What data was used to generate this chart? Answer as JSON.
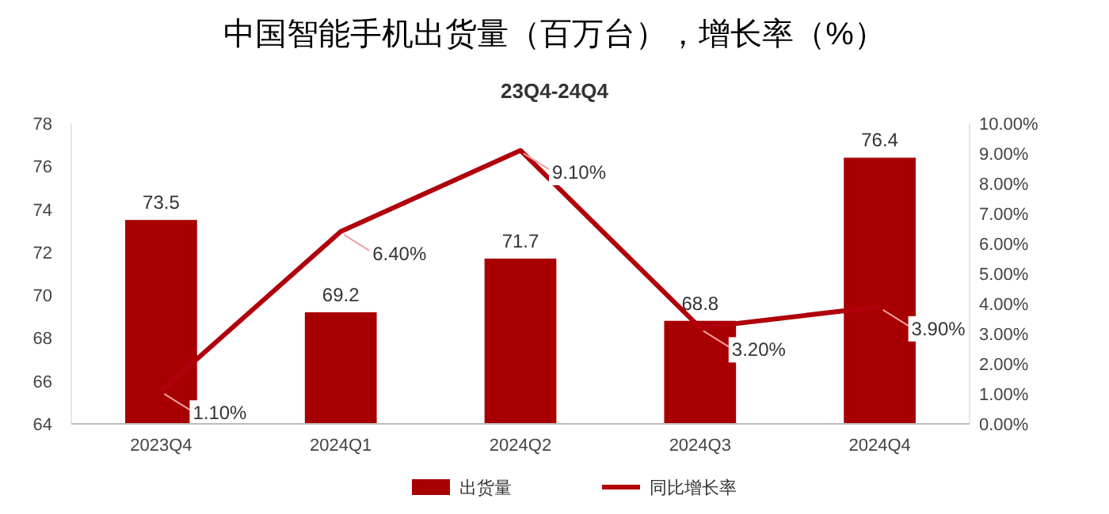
{
  "chart_data": {
    "type": "bar",
    "title": "中国智能手机出货量（百万台），增长率（%）",
    "subtitle": "23Q4-24Q4",
    "categories": [
      "2023Q4",
      "2024Q1",
      "2024Q2",
      "2024Q3",
      "2024Q4"
    ],
    "series": [
      {
        "name": "出货量",
        "color": "#a80000",
        "values": [
          73.5,
          69.2,
          71.7,
          68.8,
          76.4
        ],
        "value_labels": [
          "73.5",
          "69.2",
          "71.7",
          "68.8",
          "76.4"
        ]
      },
      {
        "name": "同比增长率",
        "type": "line",
        "axis": "y2",
        "color": "#b0000c",
        "values": [
          1.1,
          6.4,
          9.1,
          3.2,
          3.9
        ],
        "value_labels": [
          "1.10%",
          "6.40%",
          "9.10%",
          "3.20%",
          "3.90%"
        ]
      }
    ],
    "ylim": [
      64,
      78
    ],
    "yticks": [
      64,
      66,
      68,
      70,
      72,
      74,
      76,
      78
    ],
    "y2lim": [
      0,
      10
    ],
    "y2ticks": [
      {
        "value": 0,
        "label": "0.00%"
      },
      {
        "value": 1,
        "label": "1.00%"
      },
      {
        "value": 2,
        "label": "2.00%"
      },
      {
        "value": 3,
        "label": "3.00%"
      },
      {
        "value": 4,
        "label": "4.00%"
      },
      {
        "value": 5,
        "label": "5.00%"
      },
      {
        "value": 6,
        "label": "6.00%"
      },
      {
        "value": 7,
        "label": "7.00%"
      },
      {
        "value": 8,
        "label": "8.00%"
      },
      {
        "value": 9,
        "label": "9.00%"
      },
      {
        "value": 10,
        "label": "10.00%"
      }
    ],
    "legend": "bottom",
    "grid": false,
    "marker": "none"
  }
}
